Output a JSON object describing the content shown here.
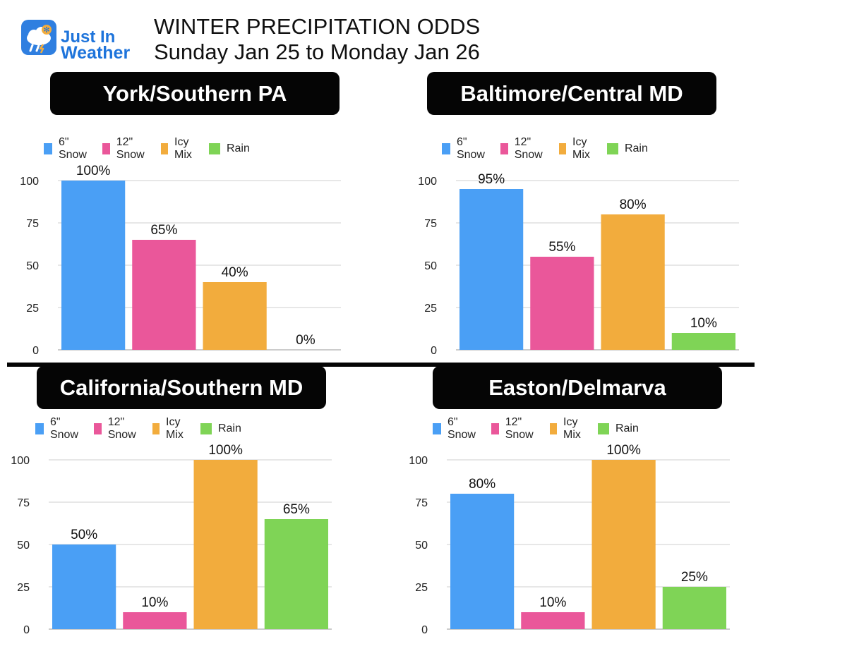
{
  "logo": {
    "text_line1": "Just In",
    "text_line2": "Weather",
    "icon": "snowflake-rain-cloud-icon"
  },
  "header": {
    "title": "WINTER PRECIPITATION ODDS",
    "subtitle": "Sunday Jan 25 to Monday Jan 26"
  },
  "colors": {
    "snow6": "#4a9ff5",
    "snow12": "#ea579a",
    "icy": "#f2ac3d",
    "rain": "#7fd456",
    "grid": "#cfcfcf"
  },
  "chart_data": [
    {
      "type": "bar",
      "title": "York/Southern PA",
      "categories": [
        "6\" Snow",
        "12\" Snow",
        "Icy Mix",
        "Rain"
      ],
      "values": [
        100,
        65,
        40,
        0
      ],
      "data_labels": [
        "100%",
        "65%",
        "40%",
        "0%"
      ],
      "yticks": [
        "0",
        "25",
        "50",
        "75",
        "100"
      ],
      "ylim": [
        0,
        100
      ],
      "legend": "top"
    },
    {
      "type": "bar",
      "title": "Baltimore/Central MD",
      "categories": [
        "6\" Snow",
        "12\" Snow",
        "Icy Mix",
        "Rain"
      ],
      "values": [
        95,
        55,
        80,
        10
      ],
      "data_labels": [
        "95%",
        "55%",
        "80%",
        "10%"
      ],
      "yticks": [
        "0",
        "25",
        "50",
        "75",
        "100"
      ],
      "ylim": [
        0,
        100
      ],
      "legend": "top"
    },
    {
      "type": "bar",
      "title": "California/Southern MD",
      "categories": [
        "6\" Snow",
        "12\" Snow",
        "Icy Mix",
        "Rain"
      ],
      "values": [
        50,
        10,
        100,
        65
      ],
      "data_labels": [
        "50%",
        "10%",
        "100%",
        "65%"
      ],
      "yticks": [
        "0",
        "25",
        "50",
        "75",
        "100"
      ],
      "ylim": [
        0,
        100
      ],
      "legend": "top"
    },
    {
      "type": "bar",
      "title": "Easton/Delmarva",
      "categories": [
        "6\" Snow",
        "12\" Snow",
        "Icy Mix",
        "Rain"
      ],
      "values": [
        80,
        10,
        100,
        25
      ],
      "data_labels": [
        "80%",
        "10%",
        "100%",
        "25%"
      ],
      "yticks": [
        "0",
        "25",
        "50",
        "75",
        "100"
      ],
      "ylim": [
        0,
        100
      ],
      "legend": "top"
    }
  ]
}
